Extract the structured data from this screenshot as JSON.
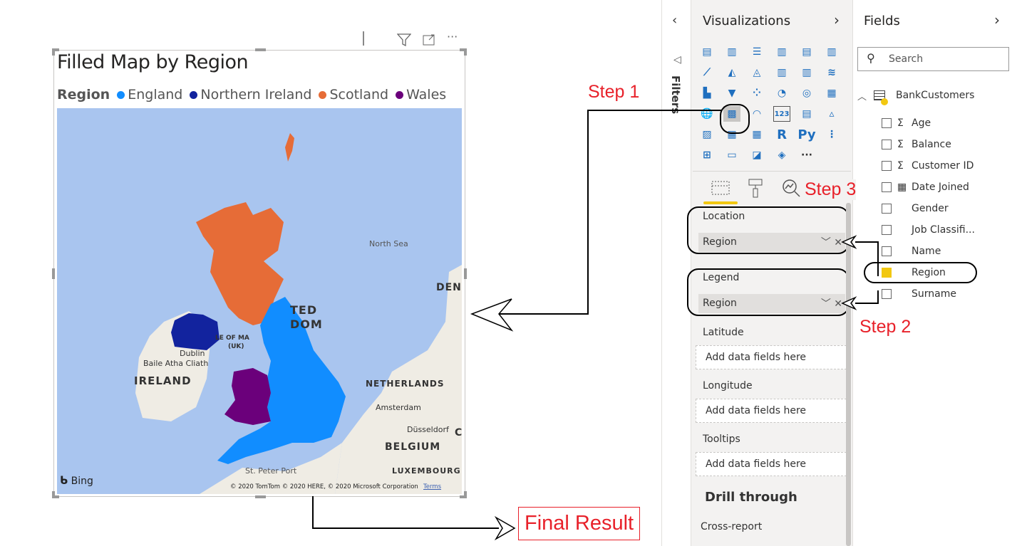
{
  "visual": {
    "title": "Filled Map by Region",
    "header_icons": [
      "info-icon",
      "filter-icon",
      "focus-mode-icon",
      "more-options-icon"
    ],
    "legend": {
      "title": "Region",
      "items": [
        {
          "label": "England",
          "color": "#118dff"
        },
        {
          "label": "Northern Ireland",
          "color": "#12239e"
        },
        {
          "label": "Scotland",
          "color": "#e66c37"
        },
        {
          "label": "Wales",
          "color": "#6b007b"
        }
      ]
    },
    "map": {
      "labels": {
        "north_sea": "North Sea",
        "den": "DEN",
        "united": "TED",
        "kingdom": "DOM",
        "isle": "LE OF MA",
        "uk": "(UK)",
        "dublin": "Dublin",
        "baile": "Baile Atha Cliath",
        "ireland": "IRELAND",
        "netherlands": "NETHERLANDS",
        "amsterdam": "Amsterdam",
        "dusseldorf": "Düsseldorf",
        "belgium": "BELGIUM",
        "st_peter_port": "St. Peter Port",
        "luxembourg": "LUXEMBOURG",
        "c": "C"
      },
      "bing": "Bing",
      "attribution": "© 2020 TomTom © 2020 HERE, © 2020 Microsoft Corporation",
      "terms": "Terms"
    }
  },
  "filters": {
    "label": "Filters"
  },
  "visualizations": {
    "title": "Visualizations",
    "selected_icon": "filled-map-icon",
    "tabs": [
      "fields-tab",
      "format-tab",
      "analytics-tab"
    ],
    "wells": [
      {
        "label": "Location",
        "value": "Region"
      },
      {
        "label": "Legend",
        "value": "Region"
      },
      {
        "label": "Latitude",
        "placeholder": "Add data fields here"
      },
      {
        "label": "Longitude",
        "placeholder": "Add data fields here"
      },
      {
        "label": "Tooltips",
        "placeholder": "Add data fields here"
      }
    ],
    "drill_through": "Drill through",
    "cross_report": "Cross-report",
    "more": "···",
    "r_label": "R",
    "py_label": "Py",
    "card_label": "123"
  },
  "fields": {
    "title": "Fields",
    "search_placeholder": "Search",
    "table": "BankCustomers",
    "items": [
      {
        "name": "Age",
        "sigma": "Σ",
        "checked": false
      },
      {
        "name": "Balance",
        "sigma": "Σ",
        "checked": false
      },
      {
        "name": "Customer ID",
        "sigma": "Σ",
        "checked": false
      },
      {
        "name": "Date Joined",
        "sigma": "▦",
        "checked": false
      },
      {
        "name": "Gender",
        "sigma": "",
        "checked": false
      },
      {
        "name": "Job Classifi...",
        "sigma": "",
        "checked": false
      },
      {
        "name": "Name",
        "sigma": "",
        "checked": false
      },
      {
        "name": "Region",
        "sigma": "",
        "checked": true
      },
      {
        "name": "Surname",
        "sigma": "",
        "checked": false
      }
    ]
  },
  "annotations": {
    "step1": "Step 1",
    "step2": "Step 2",
    "step3": "Step 3",
    "final": "Final Result"
  }
}
